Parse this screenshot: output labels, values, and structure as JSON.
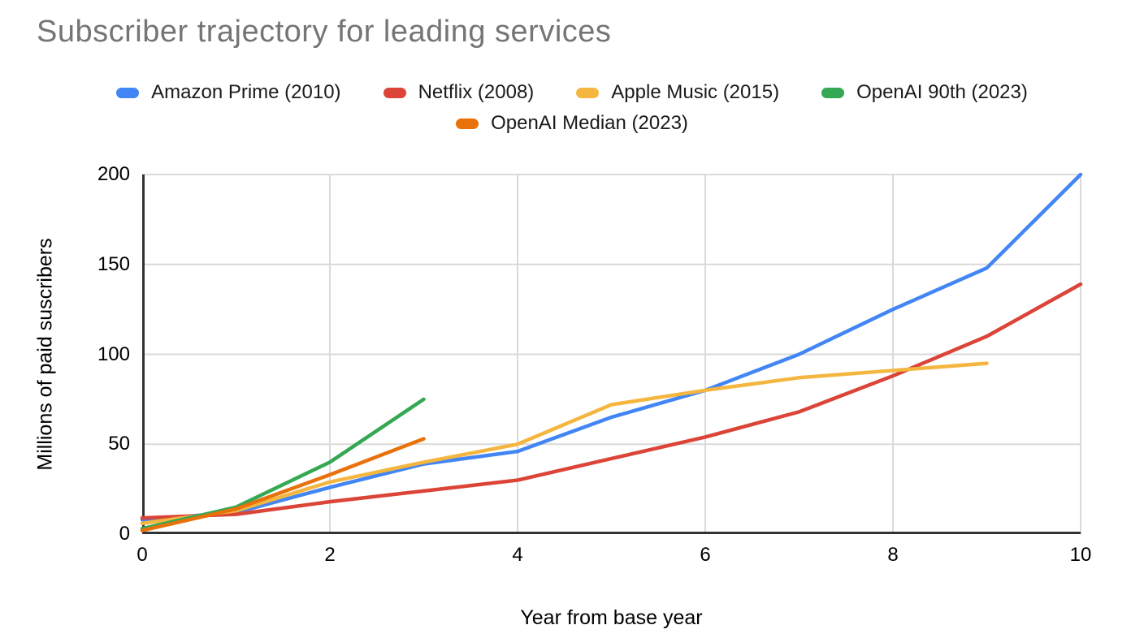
{
  "title": "Subscriber trajectory for leading services",
  "colors": {
    "title_text": "#757575",
    "tick_text": "#000000",
    "grid": "#dadada",
    "axis": "#333333",
    "background": "#ffffff",
    "series_blue": "#4285F4",
    "series_red": "#DB4437",
    "series_yellow": "#F4B63F",
    "series_green": "#34A853",
    "series_orange": "#E8710A"
  },
  "chart_data": {
    "type": "line",
    "title": "Subscriber trajectory for leading services",
    "xlabel": "Year from base year",
    "ylabel": "Millions of paid suscribers",
    "xlim": [
      0,
      10
    ],
    "ylim": [
      0,
      200
    ],
    "x_ticks": [
      0,
      2,
      4,
      6,
      8,
      10
    ],
    "y_ticks": [
      0,
      50,
      100,
      150,
      200
    ],
    "grid": true,
    "legend_position": "top",
    "series": [
      {
        "name": "Amazon Prime (2010)",
        "color": "#4285F4",
        "x": [
          0,
          1,
          2,
          3,
          4,
          5,
          6,
          7,
          8,
          9,
          10
        ],
        "values": [
          8,
          12,
          26,
          39,
          46,
          65,
          80,
          100,
          125,
          148,
          200
        ]
      },
      {
        "name": "Netflix (2008)",
        "color": "#DB4437",
        "x": [
          0,
          1,
          2,
          3,
          4,
          5,
          6,
          7,
          8,
          9,
          10
        ],
        "values": [
          9,
          11,
          18,
          24,
          30,
          42,
          54,
          68,
          88,
          110,
          139
        ]
      },
      {
        "name": "Apple Music (2015)",
        "color": "#F4B63F",
        "x": [
          0,
          1,
          2,
          3,
          4,
          5,
          6,
          7,
          8,
          9
        ],
        "values": [
          6,
          13,
          29,
          40,
          50,
          72,
          80,
          87,
          91,
          95
        ]
      },
      {
        "name": "OpenAI 90th (2023)",
        "color": "#34A853",
        "x": [
          0,
          1,
          2,
          3
        ],
        "values": [
          3,
          15,
          40,
          75
        ]
      },
      {
        "name": "OpenAI Median (2023)",
        "color": "#E8710A",
        "x": [
          0,
          1,
          2,
          3
        ],
        "values": [
          2,
          14,
          33,
          53
        ]
      }
    ]
  }
}
